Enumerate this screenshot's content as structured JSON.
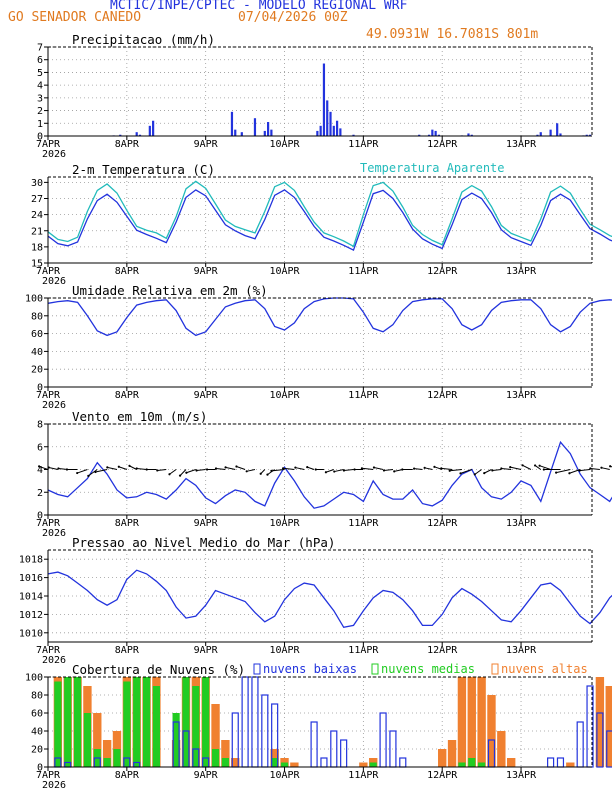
{
  "header": {
    "title": "MCTIC/INPE/CPTEC - MODELO REGIONAL WRF",
    "location": "GO SENADOR CANEDO",
    "run": "07/04/2026 00Z",
    "coords": "49.0931W 16.7081S 801m"
  },
  "colors": {
    "blue": "#2233dd",
    "cyan": "#22bbbb",
    "green": "#22cc22",
    "orange": "#f08030",
    "title": "#2233dd",
    "header_orange": "#e07a20",
    "grid": "#999999",
    "black": "#000000"
  },
  "x_axis": {
    "ticks": [
      {
        "day": 0,
        "label": "7APR",
        "sub": "2026"
      },
      {
        "day": 1,
        "label": "8APR"
      },
      {
        "day": 2,
        "label": "9APR"
      },
      {
        "day": 3,
        "label": "10APR"
      },
      {
        "day": 4,
        "label": "11APR"
      },
      {
        "day": 5,
        "label": "12APR"
      },
      {
        "day": 6,
        "label": "13APR"
      }
    ],
    "range_days": [
      0,
      6.9
    ]
  },
  "chart_data": [
    {
      "type": "bar",
      "title": "Precipitacao (mm/h)",
      "ylim": [
        0,
        7
      ],
      "yticks": [
        0,
        1,
        2,
        3,
        4,
        5,
        6,
        7
      ],
      "grid": true,
      "x_hours": [
        20,
        22,
        27,
        28,
        31,
        32,
        56,
        57,
        59,
        63,
        66,
        67,
        68,
        82,
        83,
        84,
        85,
        86,
        87,
        88,
        89,
        93,
        113,
        116,
        117,
        118,
        119,
        126,
        128,
        129,
        149,
        150,
        153,
        155,
        156,
        163,
        164,
        165,
        177,
        178,
        181,
        183,
        184,
        187,
        189,
        190,
        191,
        192
      ],
      "values": [
        0.05,
        0.1,
        0.3,
        0.1,
        0.8,
        1.2,
        1.9,
        0.5,
        0.3,
        1.4,
        0.4,
        1.1,
        0.5,
        0.4,
        0.8,
        5.7,
        2.8,
        1.9,
        0.8,
        1.2,
        0.6,
        0.1,
        0.1,
        0.1,
        0.5,
        0.4,
        0.1,
        0.05,
        0.2,
        0.1,
        0.1,
        0.3,
        0.5,
        1.0,
        0.2,
        0.05,
        0.1,
        0.1,
        0.3,
        0.1,
        0.1,
        0.2,
        0.7,
        0.1,
        0.2,
        0.4,
        0.6,
        0.8
      ],
      "series": [
        {
          "name": "Precipitacao",
          "color": "#2233dd"
        }
      ]
    },
    {
      "type": "line",
      "title": "2-m Temperatura (C)",
      "ylim": [
        15,
        31
      ],
      "yticks": [
        15,
        18,
        21,
        24,
        27,
        30
      ],
      "grid": true,
      "x_step_hours": 3,
      "series": [
        {
          "name": "Temperatura",
          "color": "#2233dd",
          "values": [
            20.0,
            18.6,
            18.2,
            18.9,
            23.2,
            26.6,
            27.8,
            26.3,
            23.7,
            21.1,
            20.3,
            19.6,
            18.8,
            22.6,
            27.2,
            28.6,
            27.5,
            24.8,
            22.1,
            21.0,
            20.1,
            19.5,
            23.1,
            27.6,
            28.6,
            27.2,
            24.6,
            21.8,
            19.8,
            19.1,
            18.3,
            17.4,
            22.6,
            27.9,
            28.5,
            27.0,
            24.4,
            21.3,
            19.5,
            18.5,
            17.7,
            22.1,
            26.8,
            28.0,
            27.0,
            24.4,
            21.2,
            19.7,
            19.0,
            18.3,
            22.0,
            26.6,
            27.8,
            26.7,
            24.0,
            21.4,
            20.4,
            19.3,
            18.6,
            22.1,
            26.6,
            28.0,
            26.8,
            24.1,
            21.8,
            19.8,
            18.3,
            17.5,
            22.2,
            26.4,
            27.2,
            26.0,
            23.1,
            20.8
          ]
        },
        {
          "name": "Temperatura Aparente",
          "color": "#22bbbb",
          "values": [
            20.8,
            19.4,
            19.0,
            19.8,
            24.6,
            28.5,
            29.7,
            28.0,
            24.8,
            21.8,
            21.1,
            20.6,
            19.6,
            23.6,
            28.8,
            30.2,
            28.9,
            26.0,
            23.0,
            21.8,
            21.2,
            20.6,
            24.6,
            29.2,
            30.0,
            28.5,
            25.5,
            22.6,
            20.6,
            19.9,
            19.1,
            18.1,
            24.0,
            29.4,
            30.0,
            28.4,
            25.4,
            22.0,
            20.3,
            19.2,
            18.4,
            23.2,
            28.2,
            29.4,
            28.4,
            25.5,
            22.0,
            20.5,
            19.8,
            19.1,
            23.2,
            28.2,
            29.3,
            28.0,
            25.0,
            22.2,
            21.2,
            20.1,
            19.4,
            23.2,
            28.2,
            29.6,
            28.0,
            25.1,
            22.5,
            20.6,
            19.0,
            18.2,
            23.4,
            27.8,
            28.6,
            27.2,
            24.0,
            21.5
          ]
        }
      ],
      "legend": [
        "Temperatura Aparente"
      ]
    },
    {
      "type": "line",
      "title": "Umidade Relativa em 2m (%)",
      "ylim": [
        0,
        100
      ],
      "yticks": [
        0,
        20,
        40,
        60,
        80,
        100
      ],
      "grid": true,
      "x_step_hours": 3,
      "series": [
        {
          "name": "Umidade Relativa",
          "color": "#2233dd",
          "values": [
            94,
            96,
            97,
            95,
            80,
            63,
            58,
            62,
            78,
            92,
            95,
            97,
            98,
            86,
            66,
            58,
            62,
            76,
            90,
            94,
            97,
            98,
            88,
            68,
            64,
            72,
            88,
            96,
            99,
            100,
            100,
            99,
            84,
            66,
            62,
            70,
            86,
            96,
            98,
            99,
            99,
            88,
            70,
            64,
            70,
            86,
            95,
            97,
            98,
            98,
            88,
            70,
            62,
            68,
            84,
            94,
            97,
            98,
            97,
            88,
            68,
            62,
            66,
            82,
            93,
            97,
            99,
            99,
            90,
            70,
            60,
            64,
            80,
            90
          ]
        }
      ]
    },
    {
      "type": "line",
      "title": "Vento em 10m (m/s)",
      "ylim": [
        0,
        8
      ],
      "yticks": [
        0,
        2,
        4,
        6,
        8
      ],
      "grid": true,
      "x_step_hours": 3,
      "series": [
        {
          "name": "Vento",
          "color": "#2233dd",
          "values": [
            2.2,
            1.8,
            1.6,
            2.4,
            3.2,
            4.6,
            3.6,
            2.2,
            1.5,
            1.6,
            2.0,
            1.8,
            1.4,
            2.2,
            3.2,
            2.6,
            1.5,
            1.0,
            1.7,
            2.2,
            2.0,
            1.2,
            0.8,
            2.8,
            4.2,
            3.0,
            1.6,
            0.6,
            0.8,
            1.4,
            2.0,
            1.8,
            1.2,
            3.0,
            1.8,
            1.4,
            1.4,
            2.2,
            1.0,
            0.8,
            1.3,
            2.6,
            3.6,
            4.0,
            2.4,
            1.6,
            1.4,
            2.0,
            3.0,
            2.6,
            1.2,
            3.8,
            6.4,
            5.4,
            3.6,
            2.4,
            1.8,
            1.2,
            2.6,
            4.4,
            5.6,
            3.8,
            2.0,
            1.4,
            3.4,
            4.2,
            2.6,
            1.4,
            1.8,
            3.8,
            4.6,
            2.8,
            1.2,
            0.4
          ]
        }
      ],
      "arrows": {
        "baseline": 4,
        "note_dirs_deg_from_north": [
          120,
          110,
          100,
          90,
          60,
          40,
          70,
          110,
          120,
          130,
          100,
          90,
          80,
          40,
          30,
          60,
          80,
          90,
          100,
          110,
          120,
          70,
          30,
          40,
          80,
          100,
          110,
          120,
          90,
          60,
          70,
          80,
          90,
          100,
          110,
          80,
          70,
          90,
          100,
          110,
          120,
          100,
          80,
          60,
          40,
          50,
          80,
          100,
          110,
          130,
          140,
          120,
          90,
          70,
          60,
          80,
          100,
          110,
          120,
          130,
          110,
          90,
          60,
          50,
          70,
          90,
          100,
          110,
          120,
          110,
          90,
          80,
          70,
          90
        ]
      }
    },
    {
      "type": "line",
      "title": "Pressao ao Nivel Medio do Mar (hPa)",
      "ylim": [
        1009,
        1019
      ],
      "yticks": [
        1010,
        1012,
        1014,
        1016,
        1018
      ],
      "grid": true,
      "x_step_hours": 3,
      "series": [
        {
          "name": "Pressao",
          "color": "#2233dd",
          "values": [
            1016.4,
            1016.6,
            1016.2,
            1015.4,
            1014.6,
            1013.6,
            1013.0,
            1013.6,
            1015.8,
            1016.8,
            1016.4,
            1015.6,
            1014.6,
            1012.8,
            1011.6,
            1011.8,
            1013.0,
            1014.6,
            1014.2,
            1013.8,
            1013.4,
            1012.2,
            1011.2,
            1011.8,
            1013.6,
            1014.8,
            1015.4,
            1015.2,
            1013.8,
            1012.4,
            1010.6,
            1010.8,
            1012.4,
            1013.8,
            1014.6,
            1014.4,
            1013.6,
            1012.4,
            1010.8,
            1010.8,
            1012.0,
            1013.8,
            1014.8,
            1014.2,
            1013.4,
            1012.4,
            1011.4,
            1011.2,
            1012.4,
            1013.8,
            1015.2,
            1015.4,
            1014.6,
            1013.2,
            1011.8,
            1011.0,
            1012.2,
            1013.8,
            1014.8,
            1014.2,
            1013.6,
            1012.6,
            1011.4,
            1011.2,
            1012.4,
            1014.0,
            1014.6,
            1014.4,
            1013.6,
            1012.6,
            1011.2,
            1010.2,
            1010.6,
            1012.0
          ]
        }
      ]
    },
    {
      "type": "bar",
      "title": "Cobertura de Nuvens (%)",
      "ylim": [
        0,
        100
      ],
      "yticks": [
        0,
        20,
        40,
        60,
        80,
        100
      ],
      "grid": true,
      "x_step_hours": 3,
      "legend": [
        "nuvens baixas",
        "nuvens medias",
        "nuvens altas"
      ],
      "series": [
        {
          "name": "nuvens altas",
          "color": "#f08030",
          "values": [
            0,
            100,
            100,
            100,
            90,
            60,
            30,
            40,
            100,
            100,
            100,
            100,
            0,
            30,
            100,
            100,
            100,
            70,
            30,
            10,
            0,
            0,
            0,
            20,
            10,
            5,
            0,
            0,
            0,
            0,
            0,
            0,
            5,
            10,
            0,
            0,
            0,
            0,
            0,
            0,
            20,
            30,
            100,
            100,
            100,
            80,
            40,
            10,
            0,
            0,
            0,
            0,
            0,
            5,
            0,
            0,
            100,
            90,
            70,
            50,
            30,
            20,
            10,
            40,
            40,
            10,
            0,
            0,
            10,
            60,
            100,
            100,
            80,
            60
          ]
        },
        {
          "name": "nuvens medias",
          "color": "#22cc22",
          "values": [
            0,
            95,
            100,
            100,
            60,
            20,
            10,
            20,
            95,
            100,
            100,
            90,
            0,
            60,
            100,
            90,
            100,
            20,
            10,
            0,
            0,
            0,
            0,
            10,
            5,
            0,
            0,
            0,
            0,
            0,
            0,
            0,
            0,
            5,
            0,
            0,
            0,
            0,
            0,
            0,
            0,
            0,
            5,
            10,
            5,
            0,
            0,
            0,
            0,
            0,
            0,
            0,
            0,
            0,
            0,
            0,
            0,
            0,
            0,
            20,
            50,
            50,
            20,
            20,
            10,
            0,
            0,
            0,
            0,
            0,
            5,
            30,
            10,
            0
          ]
        },
        {
          "name": "nuvens baixas",
          "color": "#2233dd",
          "values": [
            0,
            10,
            5,
            0,
            0,
            10,
            0,
            0,
            10,
            5,
            0,
            0,
            0,
            50,
            40,
            20,
            10,
            0,
            0,
            60,
            100,
            100,
            80,
            70,
            0,
            0,
            0,
            50,
            10,
            40,
            30,
            0,
            0,
            0,
            60,
            40,
            10,
            0,
            0,
            0,
            0,
            0,
            0,
            0,
            0,
            30,
            0,
            0,
            0,
            0,
            0,
            10,
            10,
            0,
            50,
            90,
            60,
            40,
            20,
            10,
            0,
            0,
            0,
            10,
            20,
            10,
            0,
            0,
            0,
            0,
            0,
            20,
            50,
            70
          ]
        }
      ]
    }
  ]
}
